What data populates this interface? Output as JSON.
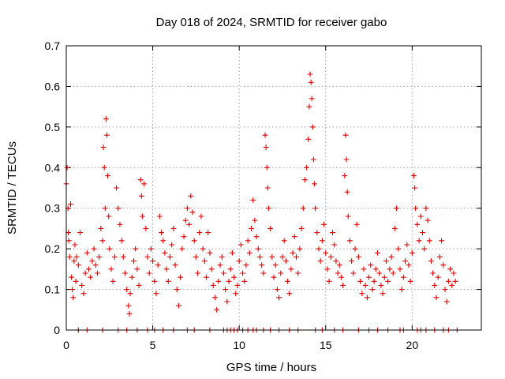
{
  "chart_data": {
    "type": "scatter",
    "title": "Day 018 of 2024, SRMTID for receiver gabo",
    "xlabel": "GPS time / hours",
    "ylabel": "SRMTID / TECUs",
    "xlim": [
      0,
      24
    ],
    "ylim": [
      0,
      0.7
    ],
    "xticks": [
      0,
      5,
      10,
      15,
      20
    ],
    "xtick_labels": [
      "0",
      "5",
      "10",
      "15",
      "20"
    ],
    "yticks": [
      0,
      0.1,
      0.2,
      0.3,
      0.4,
      0.5,
      0.6,
      0.7
    ],
    "ytick_labels": [
      "0",
      "0.1",
      "0.2",
      "0.3",
      "0.4",
      "0.5",
      "0.6",
      "0.7"
    ],
    "grid": true,
    "marker": "+",
    "color": "#e00000",
    "series": [
      {
        "name": "SRMTID",
        "points": [
          [
            0.0,
            0.36
          ],
          [
            0.05,
            0.4
          ],
          [
            0.1,
            0.3
          ],
          [
            0.12,
            0.24
          ],
          [
            0.15,
            0.22
          ],
          [
            0.2,
            0.18
          ],
          [
            0.25,
            0.31
          ],
          [
            0.3,
            0.13
          ],
          [
            0.35,
            0.1
          ],
          [
            0.4,
            0.08
          ],
          [
            0.45,
            0.17
          ],
          [
            0.5,
            0.21
          ],
          [
            0.55,
            0.12
          ],
          [
            0.6,
            0.18
          ],
          [
            0.7,
            0.16
          ],
          [
            0.8,
            0.24
          ],
          [
            0.9,
            0.11
          ],
          [
            1.0,
            0.09
          ],
          [
            1.1,
            0.14
          ],
          [
            1.2,
            0.19
          ],
          [
            1.3,
            0.15
          ],
          [
            1.4,
            0.13
          ],
          [
            1.5,
            0.17
          ],
          [
            1.6,
            0.2
          ],
          [
            1.7,
            0.16
          ],
          [
            1.8,
            0.14
          ],
          [
            1.9,
            0.18
          ],
          [
            2.0,
            0.25
          ],
          [
            2.1,
            0.22
          ],
          [
            2.15,
            0.45
          ],
          [
            2.2,
            0.4
          ],
          [
            2.25,
            0.3
          ],
          [
            2.3,
            0.52
          ],
          [
            2.35,
            0.48
          ],
          [
            2.4,
            0.38
          ],
          [
            2.45,
            0.28
          ],
          [
            2.5,
            0.2
          ],
          [
            2.6,
            0.15
          ],
          [
            2.7,
            0.12
          ],
          [
            2.8,
            0.18
          ],
          [
            2.9,
            0.35
          ],
          [
            3.0,
            0.3
          ],
          [
            3.1,
            0.26
          ],
          [
            3.2,
            0.22
          ],
          [
            3.3,
            0.18
          ],
          [
            3.4,
            0.14
          ],
          [
            3.5,
            0.1
          ],
          [
            3.6,
            0.06
          ],
          [
            3.65,
            0.04
          ],
          [
            3.7,
            0.09
          ],
          [
            3.8,
            0.13
          ],
          [
            3.9,
            0.17
          ],
          [
            4.0,
            0.2
          ],
          [
            4.1,
            0.15
          ],
          [
            4.2,
            0.11
          ],
          [
            4.3,
            0.37
          ],
          [
            4.35,
            0.33
          ],
          [
            4.4,
            0.28
          ],
          [
            4.5,
            0.36
          ],
          [
            4.6,
            0.25
          ],
          [
            4.7,
            0.18
          ],
          [
            4.8,
            0.14
          ],
          [
            4.9,
            0.2
          ],
          [
            5.0,
            0.17
          ],
          [
            5.1,
            0.12
          ],
          [
            5.2,
            0.09
          ],
          [
            5.3,
            0.16
          ],
          [
            5.4,
            0.28
          ],
          [
            5.5,
            0.24
          ],
          [
            5.6,
            0.22
          ],
          [
            5.7,
            0.19
          ],
          [
            5.8,
            0.15
          ],
          [
            5.9,
            0.12
          ],
          [
            6.0,
            0.18
          ],
          [
            6.1,
            0.21
          ],
          [
            6.2,
            0.25
          ],
          [
            6.3,
            0.16
          ],
          [
            6.4,
            0.1
          ],
          [
            6.5,
            0.06
          ],
          [
            6.6,
            0.13
          ],
          [
            6.7,
            0.2
          ],
          [
            6.8,
            0.23
          ],
          [
            6.9,
            0.27
          ],
          [
            7.0,
            0.3
          ],
          [
            7.1,
            0.26
          ],
          [
            7.2,
            0.33
          ],
          [
            7.3,
            0.29
          ],
          [
            7.4,
            0.22
          ],
          [
            7.5,
            0.18
          ],
          [
            7.6,
            0.14
          ],
          [
            7.7,
            0.24
          ],
          [
            7.8,
            0.28
          ],
          [
            7.9,
            0.2
          ],
          [
            8.0,
            0.17
          ],
          [
            8.1,
            0.13
          ],
          [
            8.2,
            0.24
          ],
          [
            8.3,
            0.19
          ],
          [
            8.4,
            0.15
          ],
          [
            8.5,
            0.11
          ],
          [
            8.6,
            0.08
          ],
          [
            8.7,
            0.05
          ],
          [
            8.8,
            0.12
          ],
          [
            8.9,
            0.16
          ],
          [
            9.0,
            0.18
          ],
          [
            9.1,
            0.14
          ],
          [
            9.2,
            0.1
          ],
          [
            9.3,
            0.07
          ],
          [
            9.4,
            0.12
          ],
          [
            9.5,
            0.15
          ],
          [
            9.6,
            0.19
          ],
          [
            9.7,
            0.13
          ],
          [
            9.8,
            0.09
          ],
          [
            9.9,
            0.11
          ],
          [
            10.0,
            0.17
          ],
          [
            10.1,
            0.21
          ],
          [
            10.2,
            0.14
          ],
          [
            10.3,
            0.12
          ],
          [
            10.4,
            0.16
          ],
          [
            10.5,
            0.22
          ],
          [
            10.6,
            0.19
          ],
          [
            10.7,
            0.25
          ],
          [
            10.8,
            0.32
          ],
          [
            10.9,
            0.27
          ],
          [
            11.0,
            0.23
          ],
          [
            11.1,
            0.2
          ],
          [
            11.2,
            0.18
          ],
          [
            11.3,
            0.16
          ],
          [
            11.4,
            0.14
          ],
          [
            11.5,
            0.48
          ],
          [
            11.55,
            0.45
          ],
          [
            11.6,
            0.4
          ],
          [
            11.65,
            0.35
          ],
          [
            11.7,
            0.3
          ],
          [
            11.8,
            0.25
          ],
          [
            11.9,
            0.18
          ],
          [
            12.0,
            0.13
          ],
          [
            12.1,
            0.16
          ],
          [
            12.2,
            0.1
          ],
          [
            12.3,
            0.08
          ],
          [
            12.4,
            0.14
          ],
          [
            12.5,
            0.18
          ],
          [
            12.6,
            0.22
          ],
          [
            12.7,
            0.17
          ],
          [
            12.8,
            0.12
          ],
          [
            12.9,
            0.09
          ],
          [
            13.0,
            0.15
          ],
          [
            13.1,
            0.19
          ],
          [
            13.2,
            0.23
          ],
          [
            13.3,
            0.18
          ],
          [
            13.4,
            0.14
          ],
          [
            13.5,
            0.2
          ],
          [
            13.6,
            0.25
          ],
          [
            13.7,
            0.3
          ],
          [
            13.8,
            0.37
          ],
          [
            13.9,
            0.4
          ],
          [
            14.0,
            0.47
          ],
          [
            14.05,
            0.55
          ],
          [
            14.1,
            0.63
          ],
          [
            14.15,
            0.61
          ],
          [
            14.2,
            0.57
          ],
          [
            14.25,
            0.5
          ],
          [
            14.3,
            0.42
          ],
          [
            14.35,
            0.36
          ],
          [
            14.4,
            0.3
          ],
          [
            14.5,
            0.24
          ],
          [
            14.6,
            0.2
          ],
          [
            14.7,
            0.17
          ],
          [
            14.8,
            0.22
          ],
          [
            14.9,
            0.26
          ],
          [
            15.0,
            0.19
          ],
          [
            15.1,
            0.15
          ],
          [
            15.2,
            0.12
          ],
          [
            15.3,
            0.18
          ],
          [
            15.4,
            0.24
          ],
          [
            15.5,
            0.21
          ],
          [
            15.6,
            0.17
          ],
          [
            15.7,
            0.14
          ],
          [
            15.8,
            0.16
          ],
          [
            15.9,
            0.13
          ],
          [
            16.0,
            0.11
          ],
          [
            16.1,
            0.38
          ],
          [
            16.15,
            0.48
          ],
          [
            16.2,
            0.42
          ],
          [
            16.25,
            0.34
          ],
          [
            16.3,
            0.28
          ],
          [
            16.4,
            0.22
          ],
          [
            16.5,
            0.17
          ],
          [
            16.6,
            0.14
          ],
          [
            16.7,
            0.2
          ],
          [
            16.8,
            0.26
          ],
          [
            16.9,
            0.18
          ],
          [
            17.0,
            0.12
          ],
          [
            17.1,
            0.09
          ],
          [
            17.2,
            0.15
          ],
          [
            17.3,
            0.11
          ],
          [
            17.4,
            0.08
          ],
          [
            17.5,
            0.13
          ],
          [
            17.6,
            0.16
          ],
          [
            17.7,
            0.1
          ],
          [
            17.8,
            0.12
          ],
          [
            17.9,
            0.15
          ],
          [
            18.0,
            0.19
          ],
          [
            18.1,
            0.14
          ],
          [
            18.2,
            0.11
          ],
          [
            18.3,
            0.09
          ],
          [
            18.4,
            0.13
          ],
          [
            18.5,
            0.17
          ],
          [
            18.6,
            0.12
          ],
          [
            18.7,
            0.15
          ],
          [
            18.8,
            0.18
          ],
          [
            18.9,
            0.14
          ],
          [
            19.0,
            0.25
          ],
          [
            19.1,
            0.3
          ],
          [
            19.2,
            0.2
          ],
          [
            19.3,
            0.15
          ],
          [
            19.4,
            0.1
          ],
          [
            19.5,
            0.13
          ],
          [
            19.6,
            0.17
          ],
          [
            19.7,
            0.21
          ],
          [
            19.8,
            0.16
          ],
          [
            19.9,
            0.12
          ],
          [
            20.0,
            0.19
          ],
          [
            20.1,
            0.38
          ],
          [
            20.15,
            0.35
          ],
          [
            20.2,
            0.3
          ],
          [
            20.3,
            0.26
          ],
          [
            20.4,
            0.22
          ],
          [
            20.5,
            0.28
          ],
          [
            20.6,
            0.24
          ],
          [
            20.7,
            0.2
          ],
          [
            20.8,
            0.3
          ],
          [
            20.9,
            0.27
          ],
          [
            21.0,
            0.22
          ],
          [
            21.1,
            0.17
          ],
          [
            21.2,
            0.14
          ],
          [
            21.3,
            0.11
          ],
          [
            21.4,
            0.08
          ],
          [
            21.5,
            0.13
          ],
          [
            21.6,
            0.18
          ],
          [
            21.7,
            0.22
          ],
          [
            21.8,
            0.16
          ],
          [
            21.9,
            0.1
          ],
          [
            22.0,
            0.07
          ],
          [
            22.1,
            0.12
          ],
          [
            22.2,
            0.15
          ],
          [
            22.3,
            0.11
          ],
          [
            22.4,
            0.14
          ],
          [
            22.5,
            0.12
          ],
          [
            0.7,
            0
          ],
          [
            1.2,
            0
          ],
          [
            2.1,
            0
          ],
          [
            3.0,
            0
          ],
          [
            3.5,
            0
          ],
          [
            4.1,
            0
          ],
          [
            4.7,
            0
          ],
          [
            5.1,
            0
          ],
          [
            5.6,
            0
          ],
          [
            6.2,
            0
          ],
          [
            7.0,
            0
          ],
          [
            7.4,
            0
          ],
          [
            8.3,
            0
          ],
          [
            9.1,
            0
          ],
          [
            9.3,
            0
          ],
          [
            9.5,
            0
          ],
          [
            9.7,
            0
          ],
          [
            9.9,
            0
          ],
          [
            10.2,
            0
          ],
          [
            10.5,
            0
          ],
          [
            10.8,
            0
          ],
          [
            11.0,
            0
          ],
          [
            11.4,
            0
          ],
          [
            11.8,
            0
          ],
          [
            12.3,
            0
          ],
          [
            12.9,
            0
          ],
          [
            13.4,
            0
          ],
          [
            14.4,
            0
          ],
          [
            14.8,
            0
          ],
          [
            15.5,
            0
          ],
          [
            16.0,
            0
          ],
          [
            16.9,
            0
          ],
          [
            17.5,
            0
          ],
          [
            18.0,
            0
          ],
          [
            18.6,
            0
          ],
          [
            19.3,
            0
          ],
          [
            19.5,
            0
          ],
          [
            20.3,
            0
          ],
          [
            20.5,
            0
          ],
          [
            20.8,
            0
          ],
          [
            21.3,
            0
          ],
          [
            21.8,
            0
          ],
          [
            22.1,
            0
          ],
          [
            22.6,
            0
          ]
        ]
      }
    ]
  }
}
